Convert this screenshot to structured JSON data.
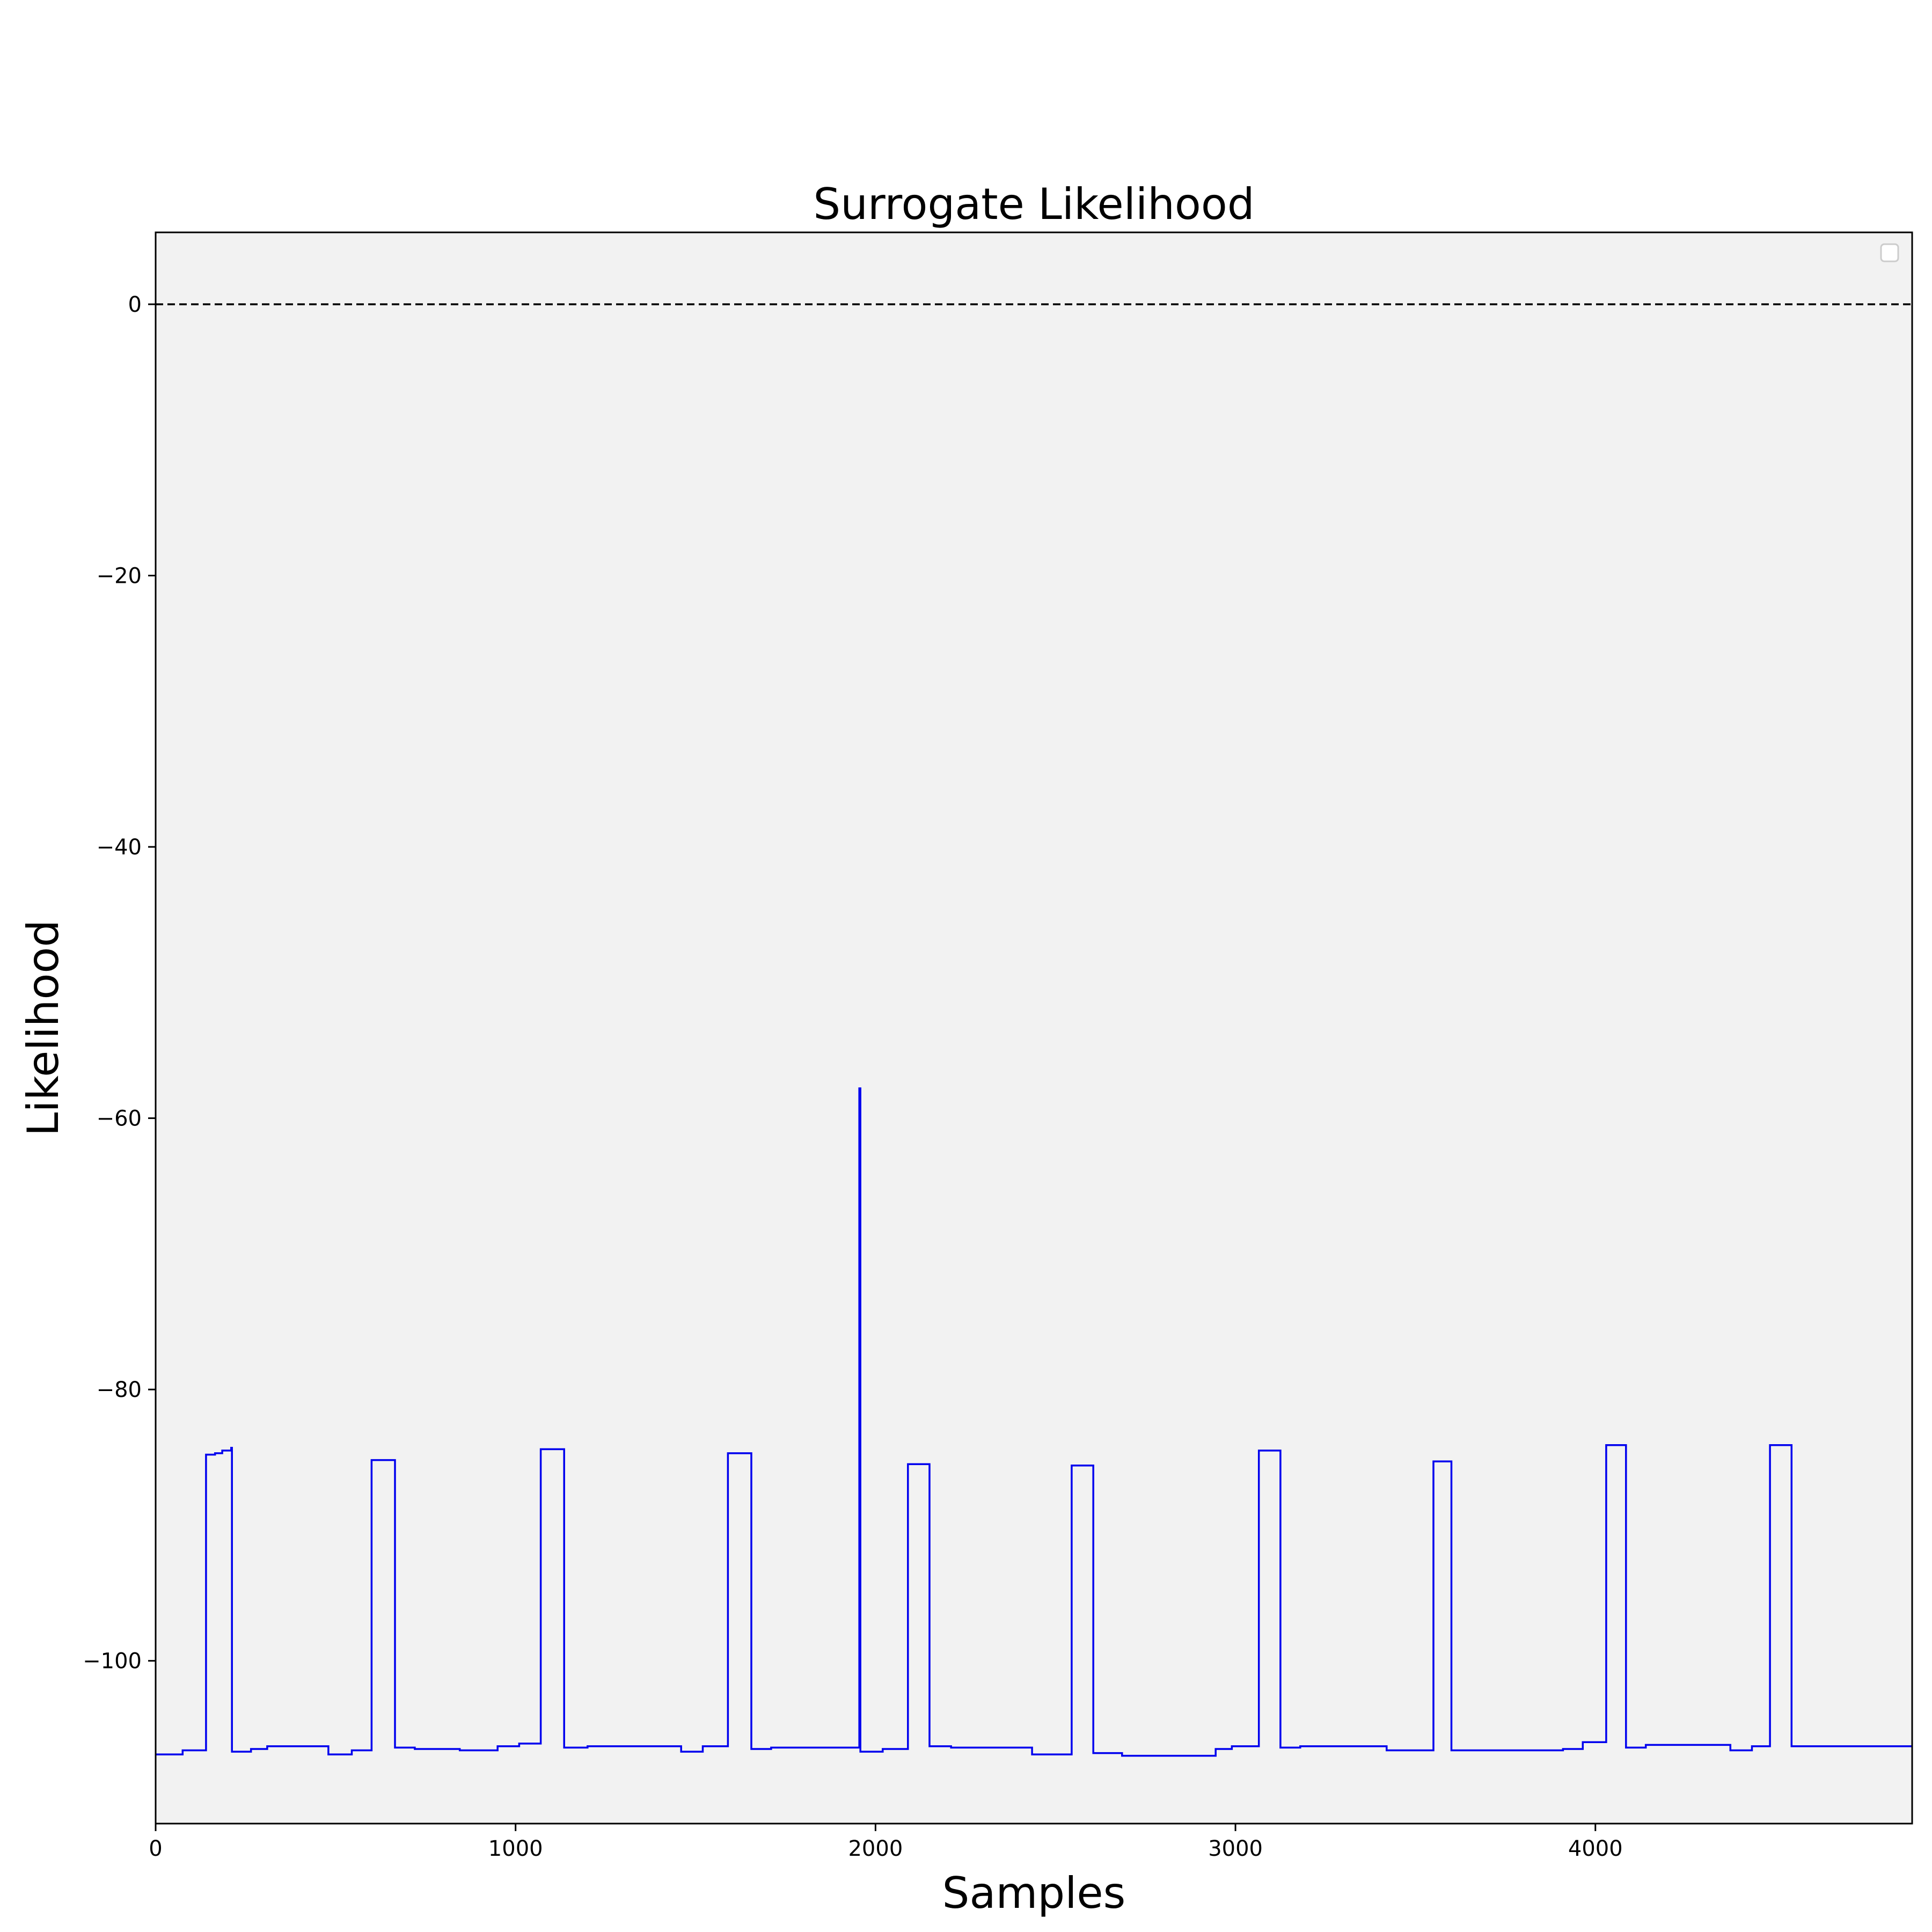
{
  "chart_data": {
    "type": "line",
    "title": "Surrogate  Likelihood",
    "xlabel": "Samples",
    "ylabel": "Likelihood",
    "xlim": [
      0,
      4880
    ],
    "ylim": [
      -112,
      5.3
    ],
    "xticks": [
      0,
      1000,
      2000,
      3000,
      4000
    ],
    "yticks": [
      0,
      -20,
      -40,
      -60,
      -80,
      -100
    ],
    "grid": false,
    "legend": "upper right (empty)",
    "colors": {
      "series": "#0000ee",
      "reference": "#000000",
      "plot_background": "#f2f2f2"
    },
    "reference_line": {
      "y": 0,
      "style": "dashed"
    },
    "series": [
      {
        "steps": [
          [
            0,
            -106.9
          ],
          [
            75,
            -106.6
          ],
          [
            140,
            -84.8
          ],
          [
            165,
            -84.7
          ],
          [
            185,
            -84.5
          ],
          [
            210,
            -84.3
          ],
          [
            212,
            -106.7
          ],
          [
            265,
            -106.5
          ],
          [
            310,
            -106.3
          ],
          [
            480,
            -106.9
          ],
          [
            545,
            -106.6
          ],
          [
            600,
            -85.2
          ],
          [
            665,
            -106.4
          ],
          [
            720,
            -106.5
          ],
          [
            845,
            -106.6
          ],
          [
            950,
            -106.3
          ],
          [
            1010,
            -106.1
          ],
          [
            1070,
            -84.4
          ],
          [
            1135,
            -106.4
          ],
          [
            1200,
            -106.3
          ],
          [
            1460,
            -106.7
          ],
          [
            1520,
            -106.3
          ],
          [
            1590,
            -84.7
          ],
          [
            1655,
            -106.5
          ],
          [
            1710,
            -106.4
          ],
          [
            1955,
            -57.8
          ],
          [
            1958,
            -106.7
          ],
          [
            2020,
            -106.5
          ],
          [
            2090,
            -85.5
          ],
          [
            2150,
            -106.3
          ],
          [
            2210,
            -106.4
          ],
          [
            2435,
            -106.9
          ],
          [
            2545,
            -85.6
          ],
          [
            2605,
            -106.8
          ],
          [
            2685,
            -107.0
          ],
          [
            2945,
            -106.5
          ],
          [
            2990,
            -106.3
          ],
          [
            3065,
            -84.5
          ],
          [
            3125,
            -106.4
          ],
          [
            3180,
            -106.3
          ],
          [
            3420,
            -106.6
          ],
          [
            3550,
            -85.3
          ],
          [
            3600,
            -106.6
          ],
          [
            3700,
            -106.6
          ],
          [
            3910,
            -106.5
          ],
          [
            3965,
            -106.0
          ],
          [
            4030,
            -84.1
          ],
          [
            4085,
            -106.4
          ],
          [
            4140,
            -106.2
          ],
          [
            4375,
            -106.6
          ],
          [
            4435,
            -106.3
          ],
          [
            4485,
            -84.1
          ],
          [
            4545,
            -106.3
          ],
          [
            4880,
            -106.3
          ]
        ]
      }
    ]
  }
}
